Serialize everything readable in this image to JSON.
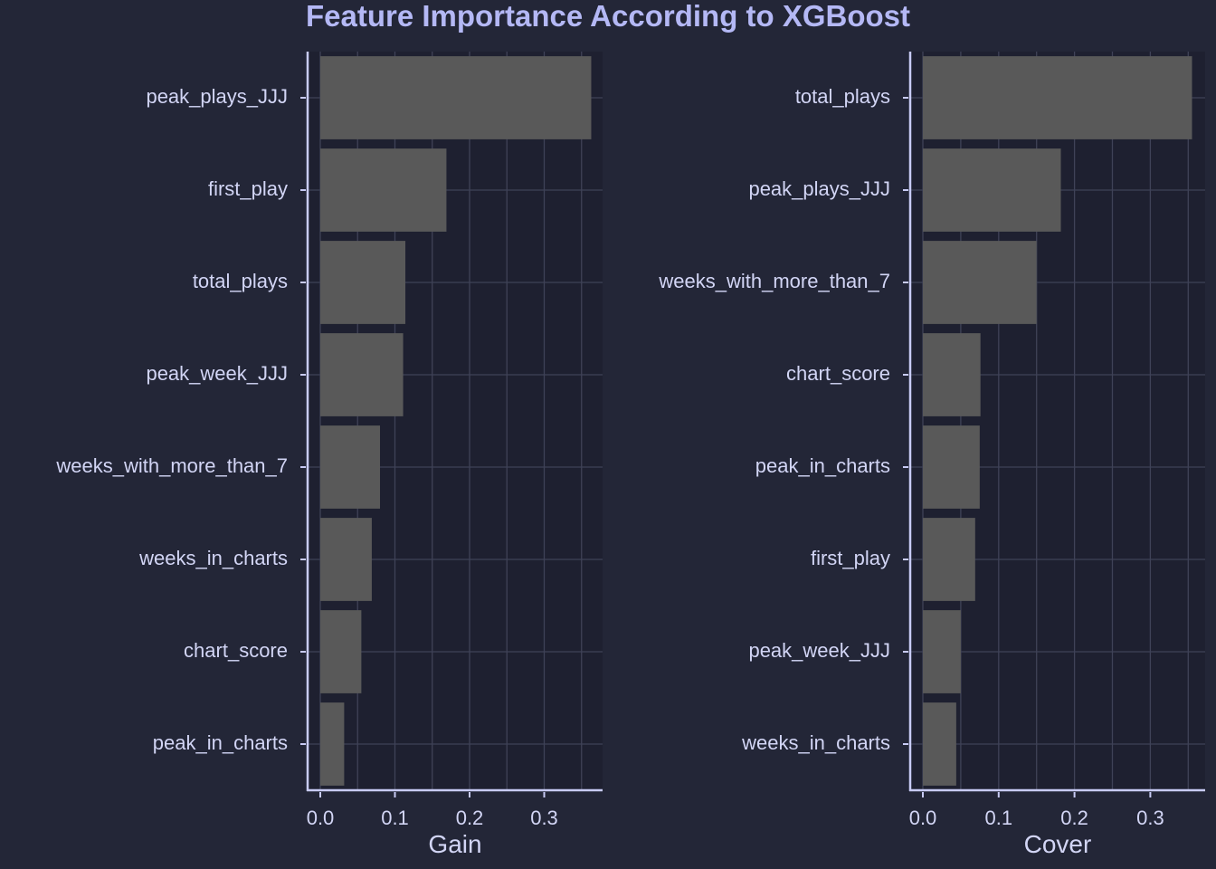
{
  "title": "Feature Importance According to XGBoost",
  "colors": {
    "background": "#232637",
    "panel": "#1e2030",
    "grid": "#3f4257",
    "bar": "#595959",
    "axis": "#c8cbf5",
    "text": "#d2d5f5",
    "title": "#b4b8f5"
  },
  "chart_data": [
    {
      "type": "bar",
      "orientation": "horizontal",
      "categories": [
        "peak_plays_JJJ",
        "first_play",
        "total_plays",
        "peak_week_JJJ",
        "weeks_with_more_than_7",
        "weeks_in_charts",
        "chart_score",
        "peak_in_charts"
      ],
      "values": [
        0.363,
        0.169,
        0.114,
        0.111,
        0.08,
        0.069,
        0.055,
        0.032
      ],
      "xlabel": "Gain",
      "ylabel": "",
      "xlim": [
        -0.017,
        0.379
      ],
      "xticks": [
        0.0,
        0.1,
        0.2,
        0.3
      ],
      "xtick_labels": [
        "0.0",
        "0.1",
        "0.2",
        "0.3"
      ],
      "grid": true
    },
    {
      "type": "bar",
      "orientation": "horizontal",
      "categories": [
        "total_plays",
        "peak_plays_JJJ",
        "weeks_with_more_than_7",
        "chart_score",
        "peak_in_charts",
        "first_play",
        "peak_week_JJJ",
        "weeks_in_charts"
      ],
      "values": [
        0.355,
        0.182,
        0.15,
        0.076,
        0.075,
        0.069,
        0.05,
        0.044
      ],
      "xlabel": "Cover",
      "ylabel": "",
      "xlim": [
        -0.017,
        0.372
      ],
      "xticks": [
        0.0,
        0.1,
        0.2,
        0.3
      ],
      "xtick_labels": [
        "0.0",
        "0.1",
        "0.2",
        "0.3"
      ],
      "grid": true
    }
  ]
}
